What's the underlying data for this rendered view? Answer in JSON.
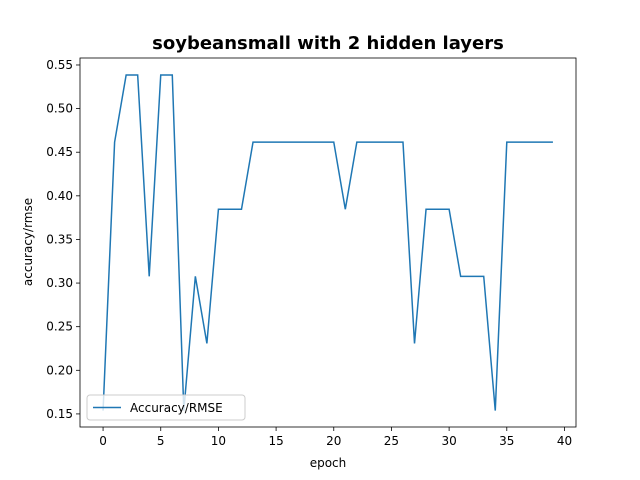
{
  "chart_data": {
    "type": "line",
    "title": "soybeansmall with 2 hidden layers",
    "xlabel": "epoch",
    "ylabel": "accuracy/rmse",
    "xlim": [
      -2,
      41
    ],
    "ylim": [
      0.135,
      0.558
    ],
    "xticks": [
      0,
      5,
      10,
      15,
      20,
      25,
      30,
      35,
      40
    ],
    "yticks": [
      0.15,
      0.2,
      0.25,
      0.3,
      0.35,
      0.4,
      0.45,
      0.5,
      0.55
    ],
    "grid": false,
    "legend_position": "lower-left",
    "series": [
      {
        "name": "Accuracy/RMSE",
        "color": "#1f77b4",
        "x": [
          0,
          1,
          2,
          3,
          4,
          5,
          6,
          7,
          8,
          9,
          10,
          11,
          12,
          13,
          14,
          15,
          16,
          17,
          18,
          19,
          20,
          21,
          22,
          23,
          24,
          25,
          26,
          27,
          28,
          29,
          30,
          31,
          32,
          33,
          34,
          35,
          36,
          37,
          38,
          39
        ],
        "y": [
          0.1538,
          0.4615,
          0.5385,
          0.5385,
          0.3077,
          0.5385,
          0.5385,
          0.1538,
          0.3077,
          0.2308,
          0.3846,
          0.3846,
          0.3846,
          0.4615,
          0.4615,
          0.4615,
          0.4615,
          0.4615,
          0.4615,
          0.4615,
          0.4615,
          0.3846,
          0.4615,
          0.4615,
          0.4615,
          0.4615,
          0.4615,
          0.2308,
          0.3846,
          0.3846,
          0.3846,
          0.3077,
          0.3077,
          0.3077,
          0.1538,
          0.4615,
          0.4615,
          0.4615,
          0.4615,
          0.4615
        ]
      }
    ]
  }
}
